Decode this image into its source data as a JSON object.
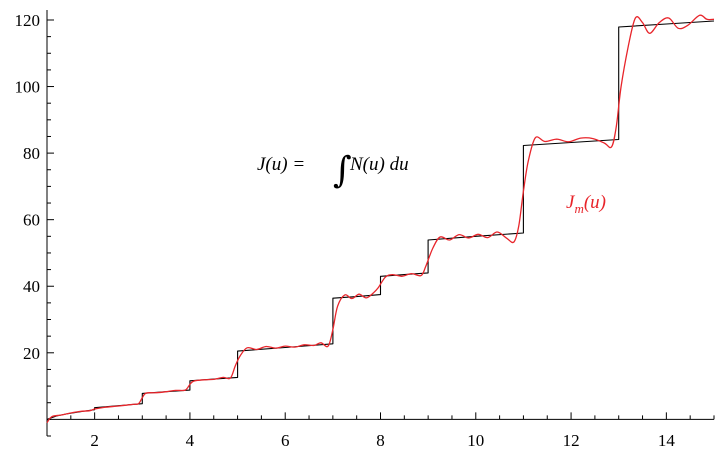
{
  "chart_data": {
    "type": "line",
    "title": "",
    "xlabel": "",
    "ylabel": "",
    "xlim": [
      1,
      15
    ],
    "ylim": [
      -5,
      123
    ],
    "x_ticks": [
      2,
      4,
      6,
      8,
      10,
      12,
      14
    ],
    "y_ticks": [
      20,
      40,
      60,
      80,
      100,
      120
    ],
    "grid": false,
    "series": [
      {
        "name": "",
        "color": "#000000",
        "style": "step",
        "points": [
          [
            1.0,
            0.0
          ],
          [
            1.2,
            1.0
          ],
          [
            1.4,
            1.6
          ],
          [
            1.6,
            2.1
          ],
          [
            1.8,
            2.5
          ],
          [
            2.0,
            2.9
          ],
          [
            2.0,
            3.5
          ],
          [
            2.5,
            4.1
          ],
          [
            3.0,
            4.7
          ],
          [
            3.0,
            7.8
          ],
          [
            3.5,
            8.3
          ],
          [
            4.0,
            8.8
          ],
          [
            4.0,
            11.6
          ],
          [
            4.5,
            12.1
          ],
          [
            5.0,
            12.6
          ],
          [
            5.0,
            20.5
          ],
          [
            6.0,
            21.6
          ],
          [
            7.0,
            22.7
          ],
          [
            7.0,
            36.4
          ],
          [
            7.5,
            36.9
          ],
          [
            8.0,
            37.5
          ],
          [
            8.0,
            43.0
          ],
          [
            8.5,
            43.5
          ],
          [
            9.0,
            44.0
          ],
          [
            9.0,
            53.9
          ],
          [
            10.0,
            55.0
          ],
          [
            11.0,
            56.0
          ],
          [
            11.0,
            82.3
          ],
          [
            12.0,
            83.2
          ],
          [
            13.0,
            84.1
          ],
          [
            13.0,
            117.9
          ],
          [
            14.0,
            118.8
          ],
          [
            15.0,
            119.7
          ]
        ]
      },
      {
        "name": "J_m(u)",
        "color": "#e8252b",
        "style": "smooth",
        "points": [
          [
            1.0,
            -1.0
          ],
          [
            1.1,
            0.8
          ],
          [
            1.3,
            1.3
          ],
          [
            1.5,
            1.9
          ],
          [
            1.7,
            2.4
          ],
          [
            1.9,
            2.6
          ],
          [
            2.0,
            3.1
          ],
          [
            2.2,
            3.6
          ],
          [
            2.5,
            4.0
          ],
          [
            2.8,
            4.5
          ],
          [
            2.92,
            4.7
          ],
          [
            3.0,
            6.5
          ],
          [
            3.08,
            7.9
          ],
          [
            3.3,
            8.0
          ],
          [
            3.5,
            8.3
          ],
          [
            3.7,
            8.7
          ],
          [
            3.9,
            8.8
          ],
          [
            4.0,
            10.5
          ],
          [
            4.08,
            11.5
          ],
          [
            4.3,
            11.9
          ],
          [
            4.5,
            12.0
          ],
          [
            4.7,
            12.6
          ],
          [
            4.85,
            12.4
          ],
          [
            4.95,
            16.0
          ],
          [
            5.05,
            19.0
          ],
          [
            5.2,
            21.5
          ],
          [
            5.4,
            21.0
          ],
          [
            5.6,
            21.9
          ],
          [
            5.8,
            21.4
          ],
          [
            6.0,
            22.0
          ],
          [
            6.2,
            21.7
          ],
          [
            6.4,
            22.4
          ],
          [
            6.6,
            22.2
          ],
          [
            6.75,
            23.0
          ],
          [
            6.9,
            22.0
          ],
          [
            7.0,
            27.0
          ],
          [
            7.1,
            34.0
          ],
          [
            7.25,
            37.4
          ],
          [
            7.4,
            36.3
          ],
          [
            7.55,
            37.6
          ],
          [
            7.7,
            36.5
          ],
          [
            7.85,
            38.0
          ],
          [
            7.95,
            39.5
          ],
          [
            8.1,
            42.7
          ],
          [
            8.25,
            43.5
          ],
          [
            8.45,
            43.0
          ],
          [
            8.65,
            43.8
          ],
          [
            8.85,
            43.2
          ],
          [
            8.95,
            46.0
          ],
          [
            9.1,
            51.5
          ],
          [
            9.25,
            54.8
          ],
          [
            9.45,
            53.9
          ],
          [
            9.65,
            55.5
          ],
          [
            9.85,
            54.5
          ],
          [
            10.05,
            55.6
          ],
          [
            10.25,
            54.6
          ],
          [
            10.45,
            56.3
          ],
          [
            10.65,
            54.4
          ],
          [
            10.8,
            53.3
          ],
          [
            10.9,
            58.0
          ],
          [
            11.0,
            68.5
          ],
          [
            11.1,
            77.5
          ],
          [
            11.25,
            84.6
          ],
          [
            11.45,
            83.5
          ],
          [
            11.7,
            84.2
          ],
          [
            11.95,
            83.4
          ],
          [
            12.2,
            84.5
          ],
          [
            12.45,
            84.4
          ],
          [
            12.7,
            83.0
          ],
          [
            12.85,
            81.9
          ],
          [
            12.95,
            88.0
          ],
          [
            13.05,
            100.0
          ],
          [
            13.2,
            112.0
          ],
          [
            13.35,
            120.6
          ],
          [
            13.5,
            119.2
          ],
          [
            13.65,
            116.0
          ],
          [
            13.85,
            119.2
          ],
          [
            14.05,
            120.6
          ],
          [
            14.25,
            117.5
          ],
          [
            14.45,
            118.4
          ],
          [
            14.7,
            121.4
          ],
          [
            14.85,
            120.2
          ],
          [
            15.0,
            120.2
          ]
        ]
      }
    ],
    "annotations": [
      {
        "text_lhs": "J(u) =",
        "text_integral": "∫",
        "text_rhs": "N(u) du",
        "at": [
          7.2,
          78
        ]
      },
      {
        "text_main": "J",
        "text_sub": "m",
        "text_rest": "(u)",
        "color": "#e8252b",
        "at": [
          12.3,
          65
        ]
      }
    ]
  }
}
